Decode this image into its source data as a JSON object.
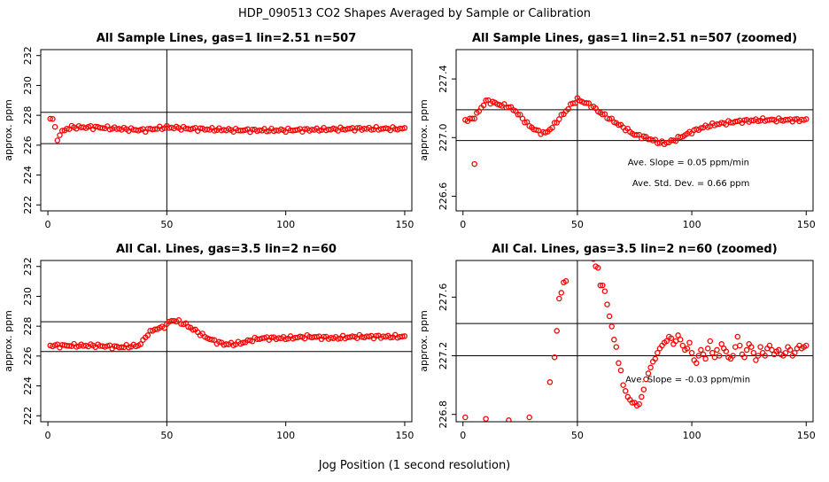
{
  "main_title": "HDP_090513  CO2 Shapes Averaged by Sample or Calibration",
  "x_axis_label": "Jog Position (1 second resolution)",
  "chart_data": [
    {
      "type": "scatter",
      "title": "All Sample Lines, gas=1 lin=2.51 n=507",
      "ylabel": "approx. ppm",
      "xlim": [
        -3,
        153
      ],
      "ylim": [
        221.6,
        232.4
      ],
      "xticks": [
        0,
        50,
        100,
        150
      ],
      "yticks": [
        222,
        224,
        226,
        228,
        230,
        232
      ],
      "hlines": [
        226.1,
        228.2
      ],
      "vline": 50,
      "annotations": [],
      "profile": [
        [
          1,
          227.8
        ],
        [
          2,
          227.8
        ],
        [
          3,
          227.1
        ],
        [
          4,
          226.4
        ],
        [
          5,
          226.7
        ],
        [
          6,
          226.9
        ],
        [
          8,
          227.1
        ],
        [
          10,
          227.2
        ],
        [
          20,
          227.2
        ],
        [
          30,
          227.1
        ],
        [
          40,
          227.0
        ],
        [
          50,
          227.2
        ],
        [
          60,
          227.1
        ],
        [
          80,
          227.0
        ],
        [
          100,
          227.0
        ],
        [
          130,
          227.1
        ],
        [
          150,
          227.1
        ]
      ]
    },
    {
      "type": "scatter",
      "title": "All Sample Lines, gas=1 lin=2.51 n=507 (zoomed)",
      "ylabel": "approx. ppm",
      "xlim": [
        -3,
        153
      ],
      "ylim": [
        226.5,
        227.6
      ],
      "xticks": [
        0,
        50,
        100,
        150
      ],
      "yticks": [
        226.6,
        227.0,
        227.4
      ],
      "hlines": [
        226.98,
        227.19
      ],
      "vline": 50,
      "annotations": [
        {
          "text": "Ave. Slope =  0.05  ppm/min",
          "x": 72,
          "y": 226.81
        },
        {
          "text": "Ave. Std. Dev. =  0.66  ppm",
          "x": 74,
          "y": 226.67
        }
      ],
      "outliers": [
        [
          5,
          226.82
        ]
      ],
      "profile": [
        [
          3,
          227.12
        ],
        [
          5,
          227.14
        ],
        [
          7,
          227.18
        ],
        [
          10,
          227.25
        ],
        [
          13,
          227.24
        ],
        [
          17,
          227.22
        ],
        [
          20,
          227.21
        ],
        [
          23,
          227.18
        ],
        [
          26,
          227.13
        ],
        [
          29,
          227.08
        ],
        [
          33,
          227.04
        ],
        [
          36,
          227.03
        ],
        [
          39,
          227.07
        ],
        [
          42,
          227.13
        ],
        [
          45,
          227.18
        ],
        [
          47,
          227.22
        ],
        [
          50,
          227.26
        ],
        [
          53,
          227.24
        ],
        [
          56,
          227.22
        ],
        [
          60,
          227.17
        ],
        [
          65,
          227.12
        ],
        [
          70,
          227.07
        ],
        [
          75,
          227.02
        ],
        [
          80,
          227.0
        ],
        [
          85,
          226.97
        ],
        [
          88,
          226.96
        ],
        [
          92,
          226.98
        ],
        [
          96,
          227.01
        ],
        [
          100,
          227.04
        ],
        [
          105,
          227.07
        ],
        [
          110,
          227.09
        ],
        [
          115,
          227.1
        ],
        [
          120,
          227.11
        ],
        [
          130,
          227.12
        ],
        [
          140,
          227.12
        ],
        [
          150,
          227.12
        ]
      ]
    },
    {
      "type": "scatter",
      "title": "All Cal. Lines, gas=3.5 lin=2 n=60",
      "ylabel": "approx. ppm",
      "xlim": [
        -3,
        153
      ],
      "ylim": [
        221.6,
        232.4
      ],
      "xticks": [
        0,
        50,
        100,
        150
      ],
      "yticks": [
        222,
        224,
        226,
        228,
        230,
        232
      ],
      "hlines": [
        226.3,
        228.3
      ],
      "vline": 50,
      "annotations": [],
      "profile": [
        [
          1,
          226.7
        ],
        [
          10,
          226.7
        ],
        [
          20,
          226.7
        ],
        [
          30,
          226.6
        ],
        [
          38,
          226.7
        ],
        [
          40,
          227.0
        ],
        [
          42,
          227.5
        ],
        [
          45,
          227.8
        ],
        [
          48,
          227.9
        ],
        [
          50,
          228.1
        ],
        [
          52,
          228.4
        ],
        [
          55,
          228.3
        ],
        [
          58,
          228.1
        ],
        [
          62,
          227.7
        ],
        [
          66,
          227.3
        ],
        [
          70,
          227.0
        ],
        [
          74,
          226.8
        ],
        [
          78,
          226.8
        ],
        [
          82,
          226.9
        ],
        [
          86,
          227.1
        ],
        [
          90,
          227.2
        ],
        [
          100,
          227.2
        ],
        [
          110,
          227.3
        ],
        [
          120,
          227.2
        ],
        [
          130,
          227.3
        ],
        [
          150,
          227.3
        ]
      ]
    },
    {
      "type": "scatter",
      "title": "All Cal. Lines, gas=3.5 lin=2 n=60 (zoomed)",
      "ylabel": "approx. ppm",
      "xlim": [
        -3,
        153
      ],
      "ylim": [
        226.75,
        227.85
      ],
      "xticks": [
        0,
        50,
        100,
        150
      ],
      "yticks": [
        226.8,
        227.2,
        227.6
      ],
      "hlines": [
        227.2,
        227.42
      ],
      "vline": 50,
      "annotations": [
        {
          "text": "Ave. Slope =  -0.03  ppm/min",
          "x": 71,
          "y": 227.02
        }
      ],
      "points": [
        [
          1,
          226.78
        ],
        [
          10,
          226.77
        ],
        [
          20,
          226.76
        ],
        [
          29,
          226.78
        ],
        [
          38,
          227.02
        ],
        [
          40,
          227.19
        ],
        [
          41,
          227.37
        ],
        [
          42,
          227.59
        ],
        [
          43,
          227.63
        ],
        [
          44,
          227.7
        ],
        [
          45,
          227.71
        ],
        [
          57,
          227.86
        ],
        [
          58,
          227.81
        ],
        [
          59,
          227.8
        ],
        [
          60,
          227.68
        ],
        [
          61,
          227.68
        ],
        [
          62,
          227.64
        ],
        [
          63,
          227.55
        ],
        [
          64,
          227.47
        ],
        [
          65,
          227.4
        ],
        [
          66,
          227.31
        ],
        [
          67,
          227.26
        ],
        [
          68,
          227.15
        ],
        [
          69,
          227.1
        ],
        [
          70,
          227.0
        ],
        [
          71,
          226.96
        ],
        [
          72,
          226.92
        ],
        [
          73,
          226.9
        ],
        [
          74,
          226.88
        ],
        [
          75,
          226.88
        ],
        [
          76,
          226.86
        ],
        [
          77,
          226.87
        ],
        [
          78,
          226.92
        ],
        [
          79,
          226.97
        ],
        [
          80,
          227.04
        ],
        [
          81,
          227.08
        ],
        [
          82,
          227.12
        ],
        [
          83,
          227.16
        ],
        [
          84,
          227.18
        ],
        [
          85,
          227.22
        ],
        [
          86,
          227.25
        ],
        [
          87,
          227.27
        ],
        [
          88,
          227.29
        ],
        [
          89,
          227.3
        ],
        [
          90,
          227.33
        ],
        [
          91,
          227.32
        ],
        [
          92,
          227.28
        ],
        [
          93,
          227.3
        ],
        [
          94,
          227.34
        ],
        [
          95,
          227.31
        ],
        [
          96,
          227.27
        ],
        [
          97,
          227.24
        ],
        [
          98,
          227.25
        ],
        [
          99,
          227.29
        ],
        [
          100,
          227.22
        ],
        [
          101,
          227.17
        ],
        [
          102,
          227.15
        ],
        [
          103,
          227.2
        ],
        [
          104,
          227.24
        ],
        [
          105,
          227.21
        ],
        [
          106,
          227.18
        ],
        [
          107,
          227.25
        ],
        [
          108,
          227.3
        ],
        [
          109,
          227.22
        ],
        [
          110,
          227.19
        ],
        [
          111,
          227.24
        ],
        [
          112,
          227.2
        ],
        [
          113,
          227.28
        ],
        [
          114,
          227.25
        ],
        [
          115,
          227.23
        ],
        [
          116,
          227.19
        ],
        [
          117,
          227.18
        ],
        [
          118,
          227.2
        ],
        [
          119,
          227.26
        ],
        [
          120,
          227.33
        ],
        [
          121,
          227.27
        ],
        [
          122,
          227.21
        ],
        [
          123,
          227.19
        ],
        [
          124,
          227.24
        ],
        [
          125,
          227.28
        ],
        [
          126,
          227.26
        ],
        [
          127,
          227.22
        ],
        [
          128,
          227.17
        ],
        [
          129,
          227.2
        ],
        [
          130,
          227.26
        ],
        [
          131,
          227.22
        ],
        [
          132,
          227.2
        ],
        [
          133,
          227.25
        ],
        [
          134,
          227.27
        ],
        [
          135,
          227.24
        ],
        [
          136,
          227.21
        ],
        [
          137,
          227.23
        ],
        [
          138,
          227.24
        ],
        [
          139,
          227.21
        ],
        [
          140,
          227.2
        ],
        [
          141,
          227.22
        ],
        [
          142,
          227.26
        ],
        [
          143,
          227.24
        ],
        [
          144,
          227.2
        ],
        [
          145,
          227.22
        ],
        [
          146,
          227.25
        ],
        [
          147,
          227.27
        ],
        [
          148,
          227.25
        ],
        [
          149,
          227.26
        ],
        [
          150,
          227.27
        ]
      ]
    }
  ],
  "colors": {
    "point": "#ff0000",
    "axis": "#000000"
  }
}
